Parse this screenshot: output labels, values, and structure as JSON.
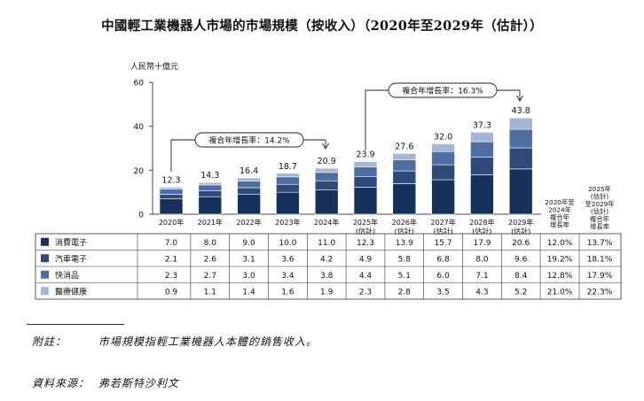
{
  "title": "中國輕工業機器人市場的市場規模（按收入）（2020年至2029年（估計））",
  "colors": {
    "consumer_electronics": "#16325c",
    "automotive_electronics": "#2e4a78",
    "fmcg": "#4e6ea3",
    "healthcare": "#a3b6d6",
    "border": "#333333"
  },
  "chart_data": {
    "type": "bar",
    "stacked": true,
    "unit_label": "人民幣十億元",
    "ylim": [
      0,
      60
    ],
    "yticks": [
      0,
      20,
      40,
      60
    ],
    "categories": [
      "2020年",
      "2021年",
      "2022年",
      "2023年",
      "2024年",
      "2025年(估計)",
      "2026年(估計)",
      "2027年(估計)",
      "2028年(估計)",
      "2029年(估計)"
    ],
    "category_lines": [
      [
        "2020年"
      ],
      [
        "2021年"
      ],
      [
        "2022年"
      ],
      [
        "2023年"
      ],
      [
        "2024年"
      ],
      [
        "2025年",
        "(估計)"
      ],
      [
        "2026年",
        "(估計)"
      ],
      [
        "2027年",
        "(估計)"
      ],
      [
        "2028年",
        "(估計)"
      ],
      [
        "2029年",
        "(估計)"
      ]
    ],
    "totals": [
      "12.3",
      "14.3",
      "16.4",
      "18.7",
      "20.9",
      "23.9",
      "27.6",
      "32.0",
      "37.3",
      "43.8"
    ],
    "series": [
      {
        "key": "consumer_electronics",
        "name": "消費電子",
        "values": [
          7.0,
          8.0,
          9.0,
          10.0,
          11.0,
          12.3,
          13.9,
          15.7,
          17.9,
          20.6
        ],
        "labels": [
          "7.0",
          "8.0",
          "9.0",
          "10.0",
          "11.0",
          "12.3",
          "13.9",
          "15.7",
          "17.9",
          "20.6"
        ],
        "cagr_2020_2024": "12.0%",
        "cagr_2025_2029": "13.7%"
      },
      {
        "key": "automotive_electronics",
        "name": "汽車電子",
        "values": [
          2.1,
          2.6,
          3.1,
          3.6,
          4.2,
          4.9,
          5.8,
          6.8,
          8.0,
          9.6
        ],
        "labels": [
          "2.1",
          "2.6",
          "3.1",
          "3.6",
          "4.2",
          "4.9",
          "5.8",
          "6.8",
          "8.0",
          "9.6"
        ],
        "cagr_2020_2024": "19.2%",
        "cagr_2025_2029": "18.1%"
      },
      {
        "key": "fmcg",
        "name": "快消品",
        "values": [
          2.3,
          2.7,
          3.0,
          3.4,
          3.8,
          4.4,
          5.1,
          6.0,
          7.1,
          8.4
        ],
        "labels": [
          "2.3",
          "2.7",
          "3.0",
          "3.4",
          "3.8",
          "4.4",
          "5.1",
          "6.0",
          "7.1",
          "8.4"
        ],
        "cagr_2020_2024": "12.8%",
        "cagr_2025_2029": "17.9%"
      },
      {
        "key": "healthcare",
        "name": "醫療健康",
        "values": [
          0.9,
          1.1,
          1.4,
          1.6,
          1.9,
          2.3,
          2.8,
          3.5,
          4.3,
          5.2
        ],
        "labels": [
          "0.9",
          "1.1",
          "1.4",
          "1.6",
          "1.9",
          "2.3",
          "2.8",
          "3.5",
          "4.3",
          "5.2"
        ],
        "cagr_2020_2024": "21.0%",
        "cagr_2025_2029": "22.3%"
      }
    ],
    "cagr_headers": {
      "first": [
        "2020年至",
        "2024年",
        "複合年",
        "增長率"
      ],
      "second": [
        "2025年",
        "(估計)",
        "至2029年",
        "(估計)",
        "複合年",
        "增長率"
      ]
    },
    "cagr_callouts": {
      "first": "複合年增長率：14.2%",
      "second": "複合年增長率：16.3%"
    }
  },
  "notes": {
    "note_label": "附註：",
    "note_text": "市場規模指輕工業機器人本體的銷售收入。",
    "source_label": "資料來源：",
    "source_text": "弗若斯特沙利文"
  }
}
